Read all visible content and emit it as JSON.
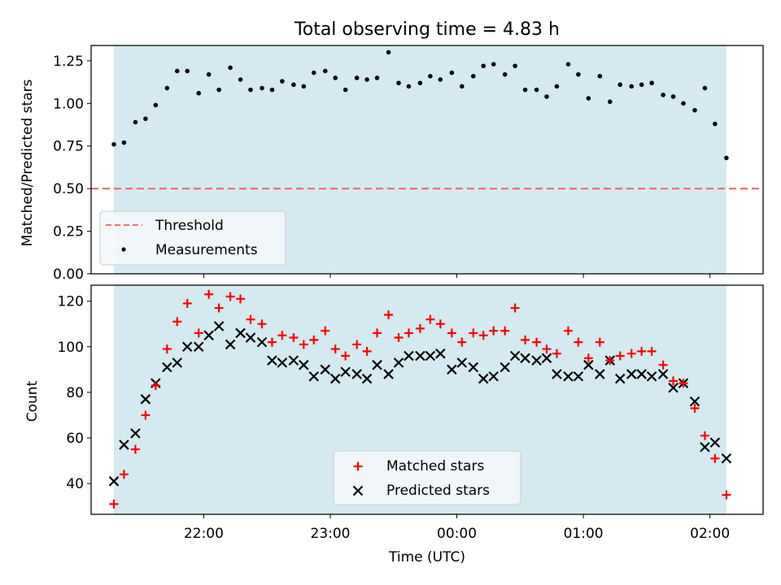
{
  "figure": {
    "title": "Total observing time = 4.83 h",
    "xlabel": "Time (UTC)"
  },
  "colors": {
    "shade": "#d4eaf0",
    "threshold": "#f07070",
    "matched": "#ff0000",
    "predicted": "#000000",
    "measurement": "#000000"
  },
  "chart_data": [
    {
      "type": "scatter",
      "panel": "top",
      "ylabel": "Matched/Predicted stars",
      "ylim": [
        0,
        1.34
      ],
      "yticks": [
        0.0,
        0.25,
        0.5,
        0.75,
        1.0,
        1.25
      ],
      "ytick_labels": [
        "0.00",
        "0.25",
        "0.50",
        "0.75",
        "1.00",
        "1.25"
      ],
      "xlim_hours": [
        -2.89,
        2.42
      ],
      "shaded_span_hours": [
        -2.71,
        2.13
      ],
      "threshold": 0.5,
      "legend": {
        "position": "lower-left",
        "entries": [
          "Threshold",
          "Measurements"
        ]
      },
      "series": [
        {
          "name": "Measurements",
          "x_hours": [
            -2.71,
            -2.63,
            -2.54,
            -2.46,
            -2.38,
            -2.29,
            -2.21,
            -2.13,
            -2.04,
            -1.96,
            -1.88,
            -1.79,
            -1.71,
            -1.63,
            -1.54,
            -1.46,
            -1.38,
            -1.29,
            -1.21,
            -1.13,
            -1.04,
            -0.96,
            -0.88,
            -0.79,
            -0.71,
            -0.63,
            -0.54,
            -0.46,
            -0.38,
            -0.29,
            -0.21,
            -0.13,
            -0.04,
            0.04,
            0.13,
            0.21,
            0.29,
            0.38,
            0.46,
            0.54,
            0.63,
            0.71,
            0.79,
            0.88,
            0.96,
            1.04,
            1.13,
            1.21,
            1.29,
            1.38,
            1.46,
            1.54,
            1.63,
            1.71,
            1.79,
            1.88,
            1.96,
            2.04,
            2.13
          ],
          "y": [
            0.76,
            0.77,
            0.89,
            0.91,
            0.99,
            1.09,
            1.19,
            1.19,
            1.06,
            1.17,
            1.08,
            1.21,
            1.14,
            1.08,
            1.09,
            1.08,
            1.13,
            1.11,
            1.1,
            1.18,
            1.19,
            1.15,
            1.08,
            1.15,
            1.14,
            1.15,
            1.3,
            1.12,
            1.1,
            1.12,
            1.16,
            1.14,
            1.18,
            1.1,
            1.16,
            1.22,
            1.23,
            1.17,
            1.22,
            1.08,
            1.08,
            1.04,
            1.1,
            1.23,
            1.17,
            1.03,
            1.16,
            1.01,
            1.11,
            1.1,
            1.11,
            1.12,
            1.05,
            1.04,
            1.0,
            0.96,
            1.09,
            0.88,
            0.68
          ]
        },
        {
          "name": "Threshold",
          "y": 0.5
        }
      ]
    },
    {
      "type": "scatter",
      "panel": "bottom",
      "ylabel": "Count",
      "ylim": [
        26.5,
        127
      ],
      "yticks": [
        40,
        60,
        80,
        100,
        120
      ],
      "xlim_hours": [
        -2.89,
        2.42
      ],
      "shaded_span_hours": [
        -2.71,
        2.13
      ],
      "xticks_hours": [
        -2,
        -1,
        0,
        1,
        2
      ],
      "xtick_labels": [
        "22:00",
        "23:00",
        "00:00",
        "01:00",
        "02:00"
      ],
      "legend": {
        "position": "lower-center",
        "entries": [
          "Matched stars",
          "Predicted stars"
        ]
      },
      "series": [
        {
          "name": "Matched stars",
          "x_hours": [
            -2.71,
            -2.63,
            -2.54,
            -2.46,
            -2.38,
            -2.29,
            -2.21,
            -2.13,
            -2.04,
            -1.96,
            -1.88,
            -1.79,
            -1.71,
            -1.63,
            -1.54,
            -1.46,
            -1.38,
            -1.29,
            -1.21,
            -1.13,
            -1.04,
            -0.96,
            -0.88,
            -0.79,
            -0.71,
            -0.63,
            -0.54,
            -0.46,
            -0.38,
            -0.29,
            -0.21,
            -0.13,
            -0.04,
            0.04,
            0.13,
            0.21,
            0.29,
            0.38,
            0.46,
            0.54,
            0.63,
            0.71,
            0.79,
            0.88,
            0.96,
            1.04,
            1.13,
            1.21,
            1.29,
            1.38,
            1.46,
            1.54,
            1.63,
            1.71,
            1.79,
            1.88,
            1.96,
            2.04,
            2.13
          ],
          "y": [
            31,
            44,
            55,
            70,
            83,
            99,
            111,
            119,
            106,
            123,
            117,
            122,
            121,
            112,
            110,
            102,
            105,
            104,
            101,
            103,
            107,
            99,
            96,
            101,
            98,
            106,
            114,
            104,
            106,
            108,
            112,
            110,
            106,
            102,
            106,
            105,
            107,
            107,
            117,
            103,
            102,
            99,
            97,
            107,
            102,
            95,
            102,
            94,
            96,
            97,
            98,
            98,
            92,
            85,
            84,
            73,
            61,
            51,
            35
          ]
        },
        {
          "name": "Predicted stars",
          "x_hours": [
            -2.71,
            -2.63,
            -2.54,
            -2.46,
            -2.38,
            -2.29,
            -2.21,
            -2.13,
            -2.04,
            -1.96,
            -1.88,
            -1.79,
            -1.71,
            -1.63,
            -1.54,
            -1.46,
            -1.38,
            -1.29,
            -1.21,
            -1.13,
            -1.04,
            -0.96,
            -0.88,
            -0.79,
            -0.71,
            -0.63,
            -0.54,
            -0.46,
            -0.38,
            -0.29,
            -0.21,
            -0.13,
            -0.04,
            0.04,
            0.13,
            0.21,
            0.29,
            0.38,
            0.46,
            0.54,
            0.63,
            0.71,
            0.79,
            0.88,
            0.96,
            1.04,
            1.13,
            1.21,
            1.29,
            1.38,
            1.46,
            1.54,
            1.63,
            1.71,
            1.79,
            1.88,
            1.96,
            2.04,
            2.13
          ],
          "y": [
            41,
            57,
            62,
            77,
            84,
            91,
            93,
            100,
            100,
            105,
            109,
            101,
            106,
            104,
            102,
            94,
            93,
            94,
            92,
            87,
            90,
            86,
            89,
            88,
            86,
            92,
            88,
            93,
            96,
            96,
            96,
            97,
            90,
            93,
            91,
            86,
            87,
            91,
            96,
            95,
            94,
            95,
            88,
            87,
            87,
            92,
            88,
            94,
            86,
            88,
            88,
            87,
            88,
            82,
            84,
            76,
            56,
            58,
            51
          ]
        }
      ]
    }
  ]
}
